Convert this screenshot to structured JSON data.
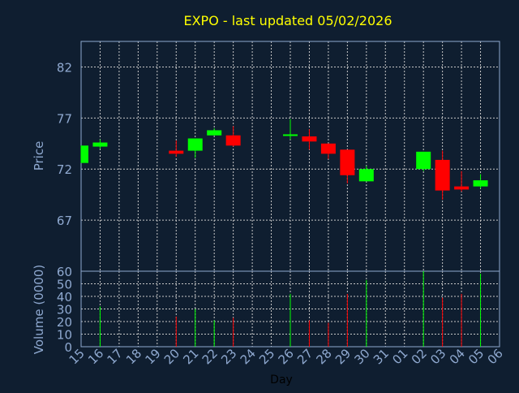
{
  "chart_data": {
    "type": "candlestick",
    "title": "EXPO - last updated 05/02/2026",
    "x_tick_labels": [
      "15",
      "16",
      "17",
      "18",
      "19",
      "20",
      "21",
      "22",
      "23",
      "24",
      "25",
      "26",
      "27",
      "28",
      "29",
      "30",
      "31",
      "01",
      "02",
      "03",
      "04",
      "05",
      "06"
    ],
    "xlabel": "Day",
    "price_panel": {
      "ylabel": "Price",
      "ylim": [
        62,
        84.5
      ],
      "yticks": [
        67,
        72,
        77,
        82
      ],
      "grid": true
    },
    "volume_panel": {
      "ylabel": "Volume (0000)",
      "ylim": [
        0,
        60
      ],
      "yticks": [
        0,
        10,
        20,
        30,
        40,
        50,
        60
      ],
      "grid": true
    },
    "series": [
      {
        "day": "15",
        "open": 72.6,
        "high": 74.3,
        "low": 72.6,
        "close": 74.3,
        "volume": 0
      },
      {
        "day": "16",
        "open": 74.2,
        "high": 74.9,
        "low": 74.0,
        "close": 74.6,
        "volume": 32
      },
      {
        "day": "20",
        "open": 73.8,
        "high": 74.8,
        "low": 73.2,
        "close": 73.5,
        "volume": 24
      },
      {
        "day": "21",
        "open": 73.8,
        "high": 75.0,
        "low": 73.1,
        "close": 75.0,
        "volume": 30
      },
      {
        "day": "22",
        "open": 75.3,
        "high": 76.0,
        "low": 75.3,
        "close": 75.8,
        "volume": 21
      },
      {
        "day": "23",
        "open": 75.3,
        "high": 76.2,
        "low": 74.2,
        "close": 74.3,
        "volume": 23
      },
      {
        "day": "26",
        "open": 75.3,
        "high": 76.9,
        "low": 74.9,
        "close": 75.4,
        "volume": 42
      },
      {
        "day": "27",
        "open": 75.2,
        "high": 75.9,
        "low": 73.9,
        "close": 74.7,
        "volume": 21
      },
      {
        "day": "28",
        "open": 74.5,
        "high": 74.5,
        "low": 73.0,
        "close": 73.5,
        "volume": 19
      },
      {
        "day": "29",
        "open": 73.9,
        "high": 73.9,
        "low": 70.6,
        "close": 71.4,
        "volume": 42
      },
      {
        "day": "30",
        "open": 70.8,
        "high": 72.3,
        "low": 70.8,
        "close": 72.0,
        "volume": 53
      },
      {
        "day": "02",
        "open": 72.0,
        "high": 73.7,
        "low": 71.8,
        "close": 73.7,
        "volume": 60
      },
      {
        "day": "03",
        "open": 72.9,
        "high": 73.8,
        "low": 69.0,
        "close": 69.9,
        "volume": 39
      },
      {
        "day": "04",
        "open": 70.3,
        "high": 71.8,
        "low": 69.8,
        "close": 70.0,
        "volume": 42
      },
      {
        "day": "05",
        "open": 70.3,
        "high": 71.5,
        "low": 70.1,
        "close": 70.9,
        "volume": 58
      }
    ],
    "colors": {
      "background": "#0f1e30",
      "up": "#00ff00",
      "down": "#ff0000",
      "title": "#ffff00",
      "axis_text": "#8fa9d0",
      "grid": "#c8c8c8",
      "frame": "#8fa9d0",
      "xlabel": "#000000"
    }
  }
}
